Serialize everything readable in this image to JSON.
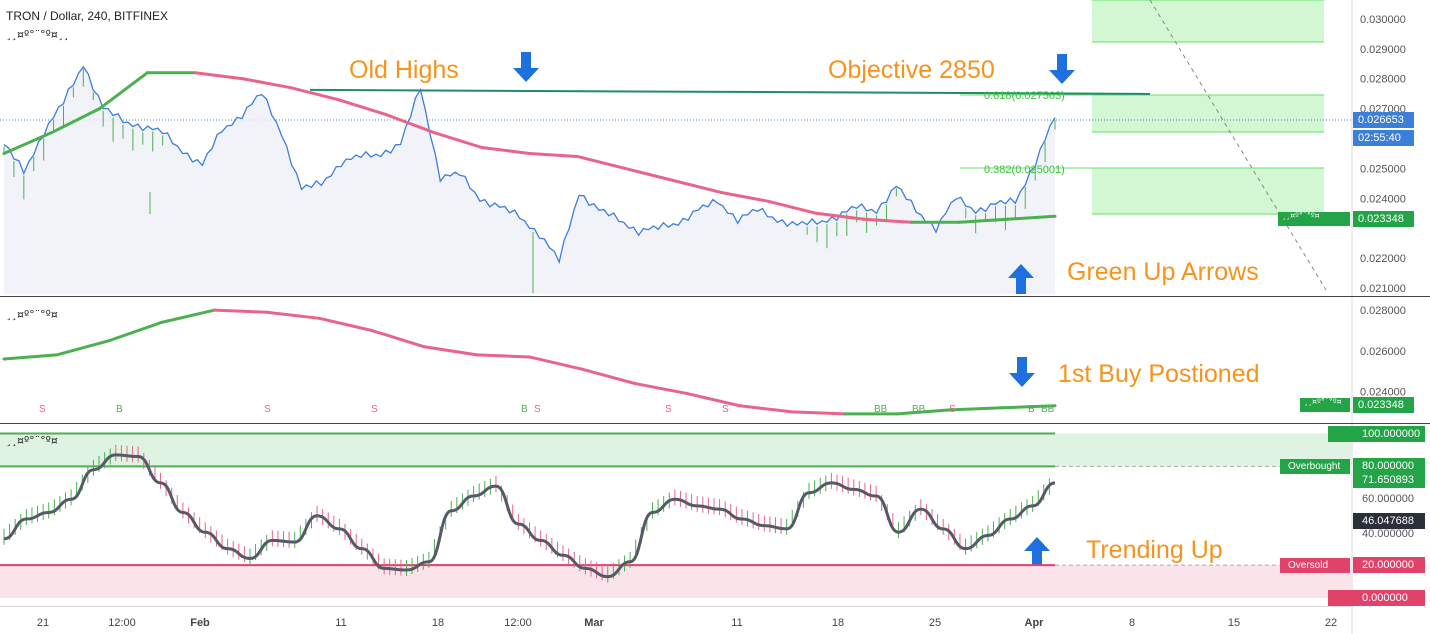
{
  "header": {
    "symbol_title": "TRON / Dollar, 240, BITFINEX",
    "indicator_glyph_1": "¸¸¤º°¨°º¤¸¸",
    "indicator_glyph_2": "¸¸¤º°¨°º¤",
    "indicator_glyph_3": "¸¸¤º°¨°º¤"
  },
  "annotations": [
    {
      "id": "old-highs",
      "text": "Old Highs"
    },
    {
      "id": "objective",
      "text": "Objective 2850"
    },
    {
      "id": "green-up-arrows",
      "text": "Green Up Arrows"
    },
    {
      "id": "first-buy",
      "text": "1st Buy Postioned"
    },
    {
      "id": "trending-up",
      "text": "Trending Up"
    }
  ],
  "fib_labels": {
    "f618": "0.618(0.027563)",
    "f382": "0.382(0.025001)"
  },
  "price_badges": {
    "last": "0.026653",
    "countdown": "02:55:40",
    "ma": "0.023348",
    "ma_small_glyph": "¸¸¤º°¨°º¤",
    "pane2_ma": "0.023348",
    "pane3_100": "100.000000",
    "pane3_80": "80.000000",
    "pane3_last": "71.650893",
    "pane3_sig": "46.047688",
    "pane3_20": "20.000000",
    "pane3_0": "0.000000",
    "overbought_label": "Overbought",
    "oversold_label": "Oversold"
  },
  "colors": {
    "price_line": "#3b7fd9",
    "ma_up": "#4caf50",
    "ma_down": "#e8648a",
    "annotation": "#f7931a",
    "arrow": "#1e6fe0",
    "fib_fill": "#c8f5c8",
    "fib_line": "#66e066",
    "resistance": "#1e8a6e",
    "osc_line": "#555a66",
    "overbought_fill": "#dff3e2",
    "oversold_fill": "#fbe3ea"
  },
  "chart_data": [
    {
      "pane": "price",
      "type": "line",
      "y_axis_ticks": [
        "0.030000",
        "0.029000",
        "0.028000",
        "0.027000",
        "0.025000",
        "0.024000",
        "0.023000",
        "0.022000",
        "0.021000"
      ],
      "ylim": [
        0.0208,
        0.0305
      ],
      "x_axis_ticks": [
        "21",
        "12:00",
        "Feb",
        "11",
        "18",
        "12:00",
        "Mar",
        "11",
        "18",
        "25",
        "Apr",
        "8",
        "15",
        "22"
      ],
      "series": [
        {
          "values": [
            0.0258,
            0.0249,
            0.0262,
            0.0272,
            0.0285,
            0.027,
            0.0266,
            0.0264,
            0.0262,
            0.0256,
            0.0251,
            0.0263,
            0.0268,
            0.0275,
            0.0262,
            0.0243,
            0.0245,
            0.0252,
            0.0254,
            0.0255,
            0.0258,
            0.0277,
            0.0247,
            0.0248,
            0.024,
            0.0237,
            0.0234,
            0.0228,
            0.0219,
            0.0242,
            0.0236,
            0.0233,
            0.0229,
            0.023,
            0.0232,
            0.0236,
            0.0239,
            0.0233,
            0.0236,
            0.0233,
            0.0231,
            0.0232,
            0.0234,
            0.0237,
            0.0236,
            0.0244,
            0.0236,
            0.023,
            0.024,
            0.0236,
            0.0238,
            0.0239,
            0.0252,
            0.0267
          ]
        },
        {
          "values": [
            0.0255,
            0.0262,
            0.027,
            0.0282,
            0.0282,
            0.028,
            0.0277,
            0.0273,
            0.0268,
            0.0262,
            0.0257,
            0.0255,
            0.0254,
            0.025,
            0.0246,
            0.0242,
            0.0239,
            0.0235,
            0.0233,
            0.0232,
            0.0232,
            0.0233,
            0.0234
          ]
        }
      ],
      "resistance_level": 0.02756,
      "fib_levels": [
        0.027563,
        0.025001
      ]
    },
    {
      "pane": "ma",
      "type": "line",
      "y_axis_ticks": [
        "0.028000",
        "0.026000",
        "0.024000"
      ],
      "ylim": [
        0.0226,
        0.0285
      ],
      "signals": [
        "S",
        "B",
        "S",
        "S",
        "B",
        "S",
        "S",
        "S",
        "BB",
        "BB",
        "S",
        "B",
        "BB"
      ],
      "series": [
        {
          "values": [
            0.0256,
            0.0258,
            0.0265,
            0.0274,
            0.028,
            0.0279,
            0.0276,
            0.027,
            0.0262,
            0.0258,
            0.0257,
            0.0251,
            0.0244,
            0.0239,
            0.0233,
            0.023,
            0.0229,
            0.0229,
            0.0231,
            0.0232,
            0.0233
          ]
        }
      ]
    },
    {
      "pane": "oscillator",
      "type": "line",
      "y_axis_ticks": [
        "60.000000",
        "40.000000"
      ],
      "ylim": [
        0,
        100
      ],
      "levels": [
        100,
        80,
        20,
        0
      ],
      "series": [
        {
          "values": [
            36,
            48,
            52,
            60,
            78,
            87,
            86,
            70,
            52,
            40,
            30,
            24,
            35,
            34,
            50,
            42,
            30,
            18,
            17,
            22,
            53,
            62,
            68,
            45,
            35,
            26,
            18,
            13,
            22,
            52,
            60,
            56,
            54,
            48,
            44,
            42,
            64,
            70,
            66,
            62,
            40,
            54,
            42,
            30,
            38,
            48,
            56,
            70
          ]
        }
      ]
    }
  ]
}
